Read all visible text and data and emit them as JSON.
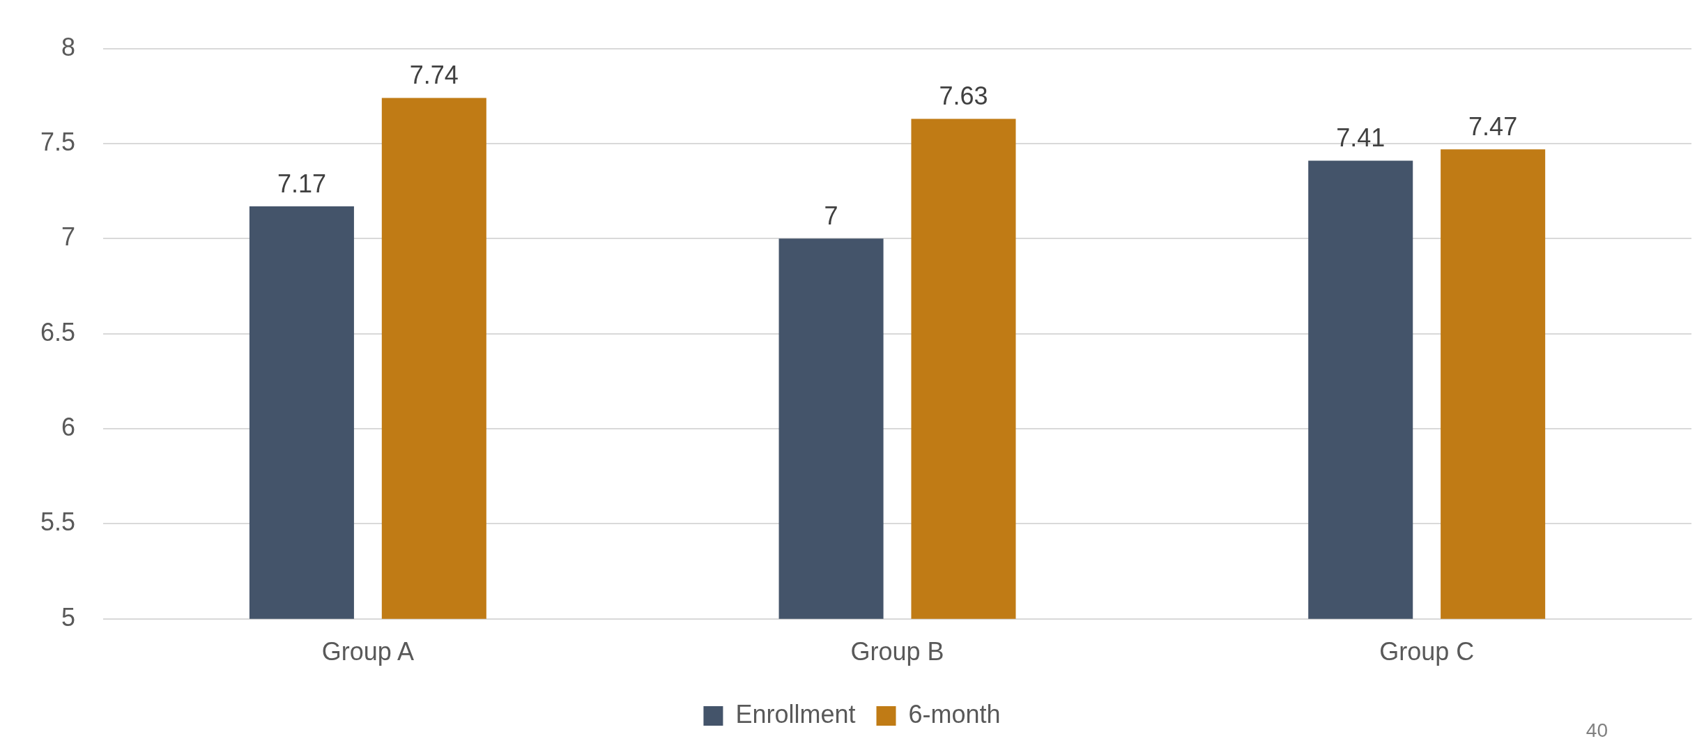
{
  "chart_data": {
    "type": "bar",
    "categories": [
      "Group A",
      "Group B",
      "Group C"
    ],
    "series": [
      {
        "name": "Enrollment",
        "color": "#44546a",
        "values": [
          7.17,
          7,
          7.41
        ]
      },
      {
        "name": "6-month",
        "color": "#c07b15",
        "values": [
          7.74,
          7.63,
          7.47
        ]
      }
    ],
    "ylim": [
      5,
      8
    ],
    "yticks": [
      5,
      5.5,
      6,
      6.5,
      7,
      7.5,
      8
    ],
    "grid": "y",
    "legend": "bottom",
    "data_labels": true,
    "annotations": [
      "40"
    ]
  }
}
